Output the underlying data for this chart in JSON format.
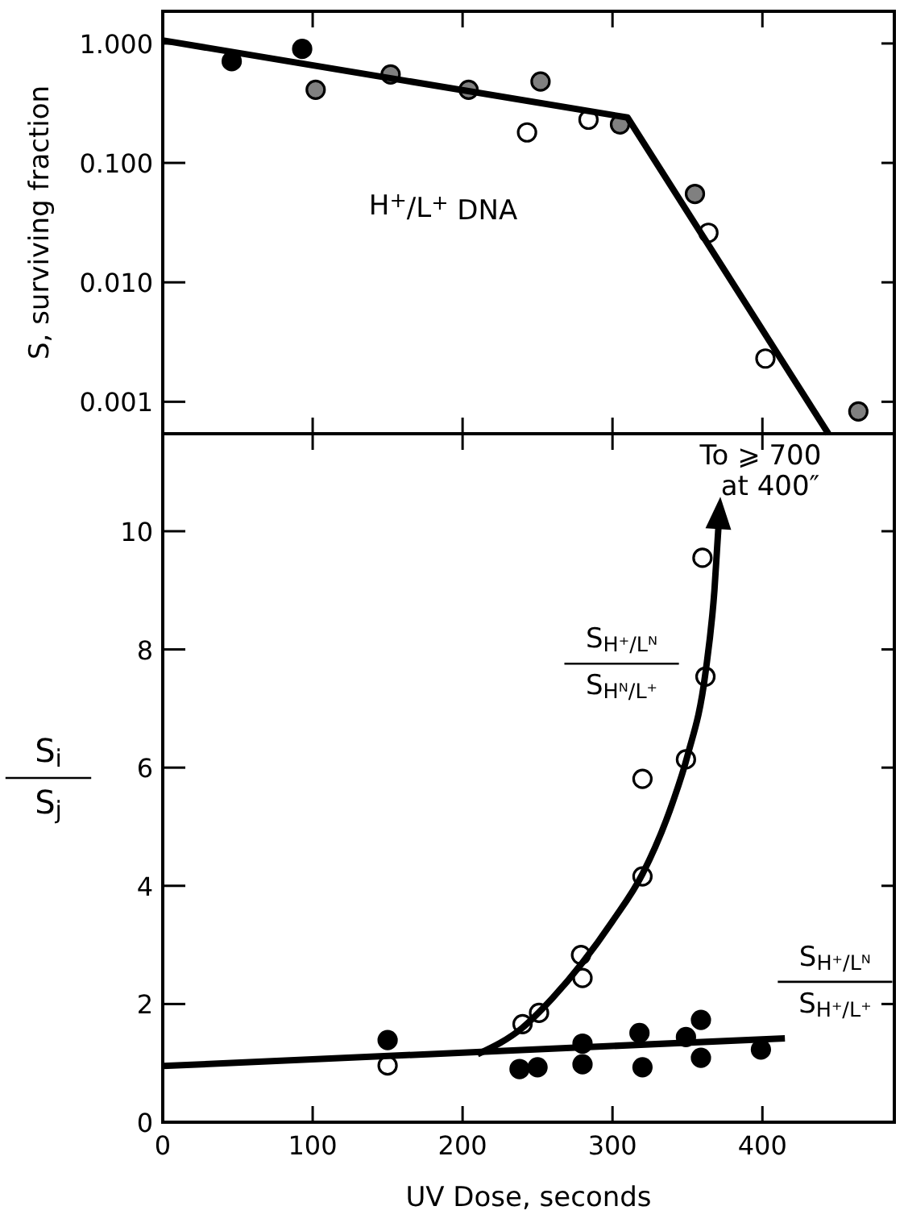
{
  "chart_data": [
    {
      "type": "scatter",
      "ylabel": "S, surviving fraction",
      "log": true,
      "marker": "circle",
      "grid": false,
      "tick_labels": "y",
      "xlim": [
        0,
        488
      ],
      "xticks": [
        {
          "value": 100,
          "label": null
        },
        {
          "value": 200,
          "label": null
        },
        {
          "value": 300,
          "label": null
        },
        {
          "value": 400,
          "label": null
        }
      ],
      "ylim": [
        0.00054,
        1.86
      ],
      "yticks": [
        {
          "value": 0.001,
          "label": "0.001"
        },
        {
          "value": 0.01,
          "label": "0.010"
        },
        {
          "value": 0.1,
          "label": "0.100"
        },
        {
          "value": 1,
          "label": "1.000"
        }
      ],
      "annotations": [
        "H$^{+}$/L$^{+}$ DNA"
      ],
      "series": [
        {
          "color": "#000000",
          "x": [
            46,
            93
          ],
          "values": [
            0.71,
            0.9
          ]
        },
        {
          "color": "#808080",
          "x": [
            102,
            152,
            204,
            252,
            305,
            355,
            464
          ],
          "values": [
            0.41,
            0.55,
            0.41,
            0.48,
            0.21,
            0.055,
            0.00083
          ]
        },
        {
          "color": "#ffffff",
          "x": [
            243,
            284,
            364,
            402
          ],
          "values": [
            0.18,
            0.23,
            0.026,
            0.0023
          ]
        },
        {
          "type": "line",
          "color": "#000000",
          "marker": "none",
          "x": [
            0,
            310,
            444
          ],
          "values": [
            1.06,
            0.24,
            0.00054
          ]
        }
      ]
    },
    {
      "type": "scatter",
      "xlabel": "UV Dose, seconds",
      "ylabel": "S$_{i}$\nS$_{j}$",
      "marker": "circle",
      "grid": false,
      "xlim": [
        0,
        488
      ],
      "xticks": [
        0,
        100,
        200,
        300,
        400
      ],
      "ylim": [
        0,
        11.65
      ],
      "yticks": [
        0,
        2,
        4,
        6,
        8,
        10
      ],
      "annotations": [
        "To ⩾ 700\nat 400″"
      ],
      "series": [
        {
          "name": "S$_{H⁺/Lᴺ}$\nS$_{Hᴺ/L⁺}$",
          "color": "#ffffff",
          "x": [
            150,
            240,
            251,
            279,
            280,
            320,
            320,
            349,
            362,
            360
          ],
          "values": [
            0.96,
            1.66,
            1.85,
            2.83,
            2.44,
            4.16,
            5.81,
            6.14,
            7.54,
            9.55
          ]
        },
        {
          "name": "S$_{H⁺/Lᴺ}$\nS$_{H⁺/L⁺}$",
          "color": "#000000",
          "x": [
            150,
            238,
            250,
            280,
            280,
            318,
            320,
            349,
            359,
            359,
            399
          ],
          "values": [
            1.39,
            0.9,
            0.93,
            1.33,
            0.98,
            1.51,
            0.93,
            1.44,
            1.73,
            1.09,
            1.23
          ]
        },
        {
          "type": "line",
          "color": "#000000",
          "marker": "none",
          "x": [
            210,
            240,
            260,
            280,
            300,
            320,
            340,
            350,
            362,
            368,
            371
          ],
          "values": [
            1.15,
            1.6,
            2.1,
            2.7,
            3.4,
            4.2,
            5.4,
            6.2,
            7.6,
            9.0,
            10.2
          ]
        },
        {
          "type": "line",
          "color": "#000000",
          "marker": "none",
          "x": [
            0,
            415
          ],
          "values": [
            0.95,
            1.42
          ]
        }
      ]
    }
  ]
}
